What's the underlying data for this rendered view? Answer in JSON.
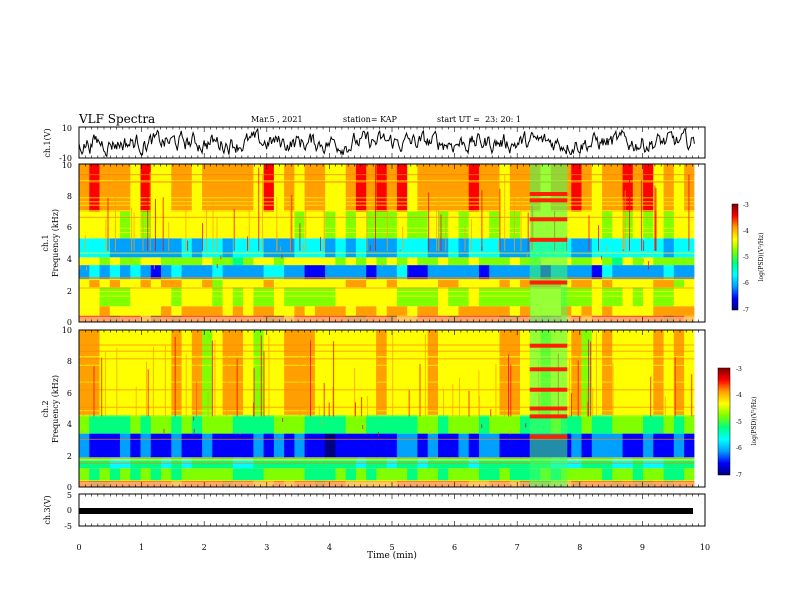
{
  "header": {
    "title": "VLF Spectra",
    "date": "Mar.5 , 2021",
    "station": "station= KAP",
    "start": "start UT =  23: 20: 1"
  },
  "colors": {
    "colormap": [
      "#000080",
      "#0000ff",
      "#00a0ff",
      "#00ffff",
      "#00ff80",
      "#80ff00",
      "#ffff00",
      "#ffa000",
      "#ff0000",
      "#800000"
    ],
    "trace": "#000000"
  },
  "chart_data": [
    {
      "id": "ch1-waveform",
      "type": "line",
      "ylabel": "ch.1(V)",
      "ylim": [
        -10,
        10
      ],
      "yticks": [
        "10",
        "-10"
      ],
      "xlim": [
        0,
        9.83
      ],
      "description": "dense noisy waveform, envelope about -9 to 9 V"
    },
    {
      "id": "ch1-spectrogram",
      "type": "heatmap",
      "ylabel_channel": "ch.1",
      "ylabel": "Frequency (kHz)",
      "ylim": [
        0,
        10
      ],
      "yticks": [
        "0",
        "2",
        "4",
        "6",
        "8",
        "10"
      ],
      "xlim": [
        0,
        9.83
      ],
      "colorbar": {
        "label": "log(PSD)(V²/Hz)",
        "range": [
          -7,
          -3
        ],
        "ticks": [
          "-3",
          "-4",
          "-5",
          "-6",
          "-7"
        ]
      },
      "dominant_level_by_band": [
        {
          "f": [
            0.0,
            0.4
          ],
          "level": -3.6
        },
        {
          "f": [
            0.4,
            1.0
          ],
          "level": -4.2
        },
        {
          "f": [
            1.0,
            2.2
          ],
          "level": -4.6
        },
        {
          "f": [
            2.2,
            2.7
          ],
          "level": -4.3
        },
        {
          "f": [
            2.7,
            3.6
          ],
          "level": -6.0
        },
        {
          "f": [
            3.6,
            4.1
          ],
          "level": -4.7
        },
        {
          "f": [
            4.1,
            5.3
          ],
          "level": -5.7
        },
        {
          "f": [
            5.3,
            7.0
          ],
          "level": -4.5
        },
        {
          "f": [
            7.0,
            10.0
          ],
          "level": -4.0
        }
      ],
      "events": [
        {
          "t": [
            7.2,
            7.8
          ],
          "note": "transmitter-like lines near 2.5, 5.2, 6.5, 7.7, 8.1 kHz"
        }
      ]
    },
    {
      "id": "ch2-spectrogram",
      "type": "heatmap",
      "ylabel_channel": "ch.2",
      "ylabel": "Frequency (kHz)",
      "ylim": [
        0,
        10
      ],
      "yticks": [
        "0",
        "2",
        "4",
        "6",
        "8",
        "10"
      ],
      "xlim": [
        0,
        9.83
      ],
      "colorbar": {
        "label": "log(PSD)(V²/Hz)",
        "range": [
          -7,
          -3
        ],
        "ticks": [
          "-3",
          "-4",
          "-5",
          "-6",
          "-7"
        ]
      },
      "dominant_level_by_band": [
        {
          "f": [
            0.0,
            0.4
          ],
          "level": -3.6
        },
        {
          "f": [
            0.4,
            1.2
          ],
          "level": -5.0
        },
        {
          "f": [
            1.2,
            1.9
          ],
          "level": -5.3
        },
        {
          "f": [
            1.9,
            3.4
          ],
          "level": -6.3
        },
        {
          "f": [
            3.4,
            4.6
          ],
          "level": -5.0
        },
        {
          "f": [
            4.6,
            10.0
          ],
          "level": -4.3
        }
      ],
      "events": [
        {
          "t": [
            7.2,
            7.8
          ],
          "note": "strong lines near 3.2, 4.5, 5.0, 6.2, 7.5, 9.0 kHz"
        }
      ]
    },
    {
      "id": "ch3-waveform",
      "type": "line",
      "ylabel": "ch.3(V)",
      "ylim": [
        -5,
        5
      ],
      "yticks": [
        "5",
        "0",
        "-5"
      ],
      "xlim": [
        0,
        9.83
      ],
      "description": "flat thick trace near -1.4 V"
    },
    {
      "id": "time-axis",
      "xlabel": "Time (min)",
      "xlim": [
        0,
        10
      ],
      "xticks": [
        "0",
        "1",
        "2",
        "3",
        "4",
        "5",
        "6",
        "7",
        "8",
        "9",
        "10"
      ]
    }
  ]
}
